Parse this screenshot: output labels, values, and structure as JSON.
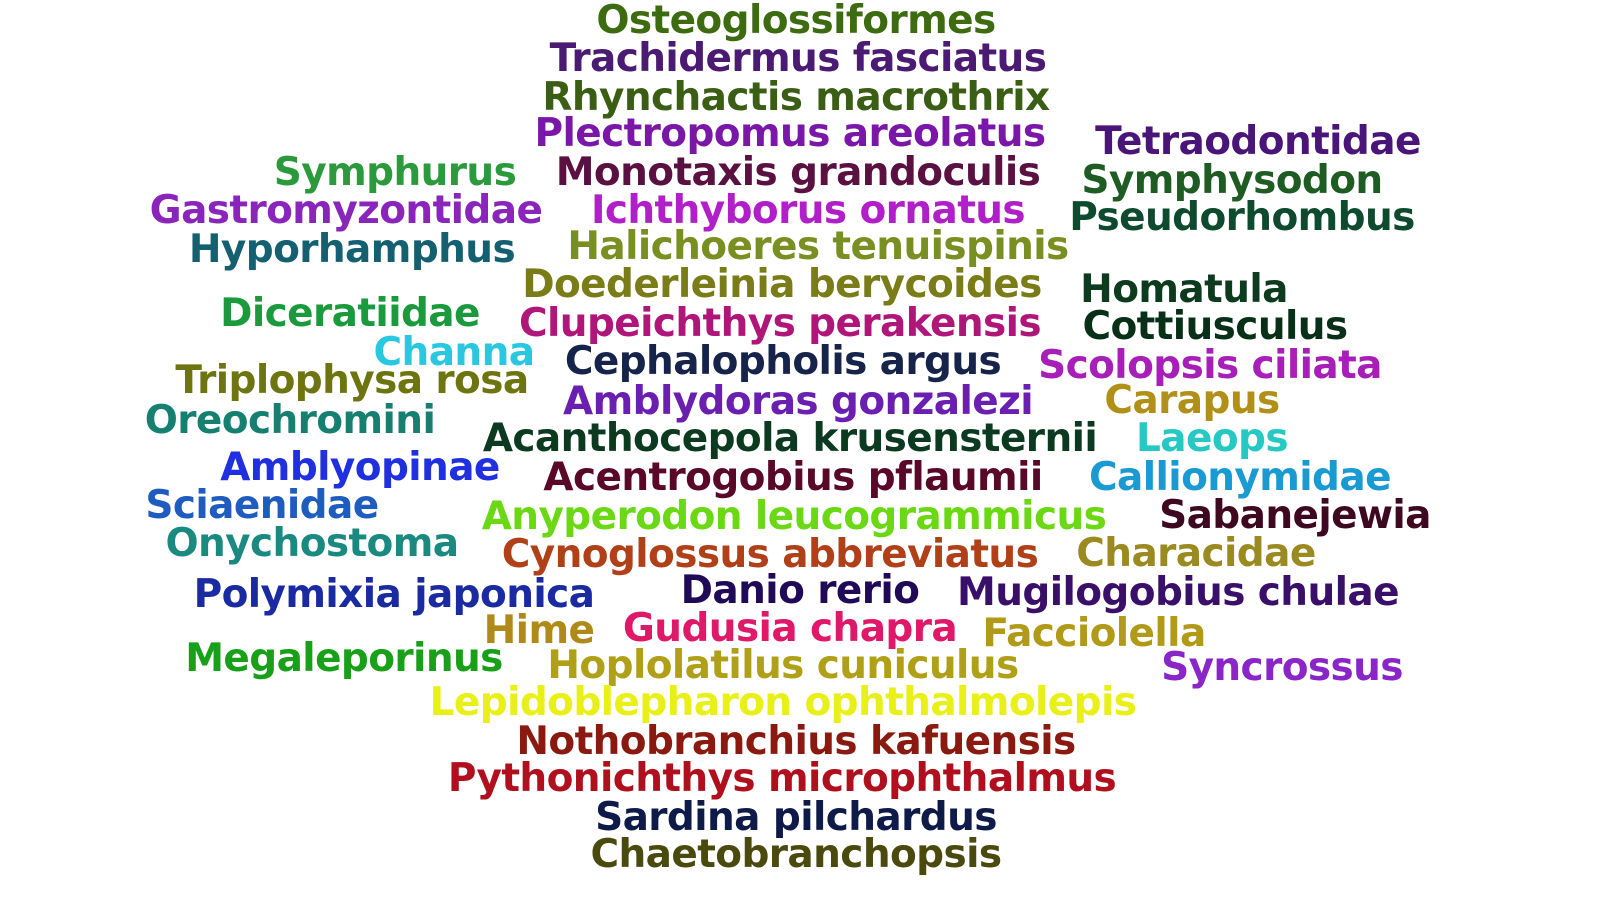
{
  "words": [
    {
      "text": "Osteoglossiformes",
      "color": "#3d6b10"
    },
    {
      "text": "Trachidermus fasciatus",
      "color": "#4b1a72"
    },
    {
      "text": "Rhynchactis macrothrix",
      "color": "#3b5e15"
    },
    {
      "text": "Plectropomus areolatus",
      "color": "#7a17a8"
    },
    {
      "text": "Tetraodontidae",
      "color": "#4a1578"
    },
    {
      "text": "Symphurus",
      "color": "#2a9a3c"
    },
    {
      "text": "Monotaxis grandoculis",
      "color": "#5a1040"
    },
    {
      "text": "Symphysodon",
      "color": "#1f5c24"
    },
    {
      "text": "Gastromyzontidae",
      "color": "#8a25bc"
    },
    {
      "text": "Ichthyborus ornatus",
      "color": "#b01fc8"
    },
    {
      "text": "Pseudorhombus",
      "color": "#0e4a2e"
    },
    {
      "text": "Hyporhamphus",
      "color": "#156070"
    },
    {
      "text": "Halichoeres tenuispinis",
      "color": "#7a8f22"
    },
    {
      "text": "Doederleinia berycoides",
      "color": "#7a7c18"
    },
    {
      "text": "Homatula",
      "color": "#0d3b1e"
    },
    {
      "text": "Diceratiidae",
      "color": "#1a9a3c"
    },
    {
      "text": "Clupeichthys perakensis",
      "color": "#b0157a"
    },
    {
      "text": "Cottiusculus",
      "color": "#083018"
    },
    {
      "text": "Channa",
      "color": "#28c8e0"
    },
    {
      "text": "Cephalopholis argus",
      "color": "#16234a"
    },
    {
      "text": "Scolopsis ciliata",
      "color": "#a81eb8"
    },
    {
      "text": "Triplophysa rosa",
      "color": "#6e7510"
    },
    {
      "text": "Amblydoras gonzalezi",
      "color": "#6a1fb0"
    },
    {
      "text": "Carapus",
      "color": "#b09018"
    },
    {
      "text": "Oreochromini",
      "color": "#168070"
    },
    {
      "text": "Acanthocepola krusensternii",
      "color": "#0b3a20"
    },
    {
      "text": "Laeops",
      "color": "#26c8c4"
    },
    {
      "text": "Amblyopinae",
      "color": "#2030e0"
    },
    {
      "text": "Acentrogobius pflaumii",
      "color": "#5a0828"
    },
    {
      "text": "Callionymidae",
      "color": "#1a9ad2"
    },
    {
      "text": "Sciaenidae",
      "color": "#1f5cc0"
    },
    {
      "text": "Anyperodon leucogrammicus",
      "color": "#6ad812"
    },
    {
      "text": "Sabanejewia",
      "color": "#3e0820"
    },
    {
      "text": "Onychostoma",
      "color": "#1a8a80"
    },
    {
      "text": "Cynoglossus abbreviatus",
      "color": "#b04018"
    },
    {
      "text": "Characidae",
      "color": "#9a8a20"
    },
    {
      "text": "Polymixia japonica",
      "color": "#1a2aa0"
    },
    {
      "text": "Danio rerio",
      "color": "#200a58"
    },
    {
      "text": "Mugilogobius chulae",
      "color": "#3a0f6a"
    },
    {
      "text": "Hime",
      "color": "#b08a18"
    },
    {
      "text": "Gudusia chapra",
      "color": "#e0186a"
    },
    {
      "text": "Facciolella",
      "color": "#b09a18"
    },
    {
      "text": "Megaleporinus",
      "color": "#18a018"
    },
    {
      "text": "Hoplolatilus cuniculus",
      "color": "#b0a018"
    },
    {
      "text": "Syncrossus",
      "color": "#8a25c8"
    },
    {
      "text": "Lepidoblepharon ophthalmolepis",
      "color": "#e8f018"
    },
    {
      "text": "Nothobranchius kafuensis",
      "color": "#8a1a10"
    },
    {
      "text": "Pythonichthys microphthalmus",
      "color": "#b0101e"
    },
    {
      "text": "Sardina pilchardus",
      "color": "#0e1a48"
    },
    {
      "text": "Chaetobranchopsis",
      "color": "#4a4a0e"
    }
  ]
}
